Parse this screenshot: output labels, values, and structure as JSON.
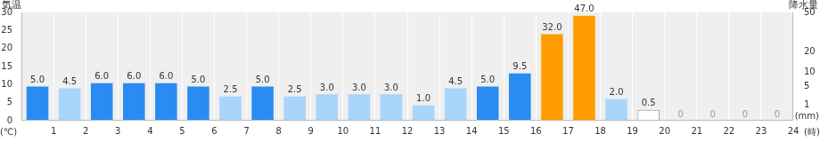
{
  "chart_data": {
    "type": "bar",
    "ylabel": "気温",
    "yunit": "(℃)",
    "y2label": "降水量",
    "y2unit": "(mm)",
    "xlabel": "(時)",
    "categories": [
      "1",
      "2",
      "3",
      "4",
      "5",
      "6",
      "7",
      "8",
      "9",
      "10",
      "11",
      "12",
      "13",
      "14",
      "15",
      "16",
      "17",
      "18",
      "19",
      "20",
      "21",
      "22",
      "23",
      "24"
    ],
    "series": [
      {
        "type": "bar",
        "axis": "y2",
        "values": [
          5.0,
          4.5,
          6.0,
          6.0,
          6.0,
          5.0,
          2.5,
          5.0,
          2.5,
          3.0,
          3.0,
          3.0,
          1.0,
          4.5,
          5.0,
          9.5,
          32.0,
          47.0,
          2.0,
          0.5,
          0,
          0,
          0,
          0
        ],
        "value_labels": [
          "5.0",
          "4.5",
          "6.0",
          "6.0",
          "6.0",
          "5.0",
          "2.5",
          "5.0",
          "2.5",
          "3.0",
          "3.0",
          "3.0",
          "1.0",
          "4.5",
          "5.0",
          "9.5",
          "32.0",
          "47.0",
          "2.0",
          "0.5",
          "0",
          "0",
          "0",
          "0"
        ],
        "colors": [
          "#2a8bf2",
          "#a9d5fb",
          "#2a8bf2",
          "#2a8bf2",
          "#2a8bf2",
          "#2a8bf2",
          "#a9d5fb",
          "#2a8bf2",
          "#a9d5fb",
          "#a9d5fb",
          "#a9d5fb",
          "#a9d5fb",
          "#a9d5fb",
          "#a9d5fb",
          "#2a8bf2",
          "#2a8bf2",
          "#ff9d00",
          "#ff9d00",
          "#a9d5fb",
          "#ffffff",
          "#ffffff",
          "#ffffff",
          "#ffffff",
          "#ffffff"
        ]
      }
    ],
    "ylim": [
      0,
      30
    ],
    "yticks": [
      0,
      5,
      10,
      15,
      20,
      25,
      30
    ],
    "y2lim": [
      0,
      50
    ],
    "y2ticks": [
      1,
      5,
      10,
      20,
      50
    ],
    "grid": true,
    "data_labels": true
  }
}
